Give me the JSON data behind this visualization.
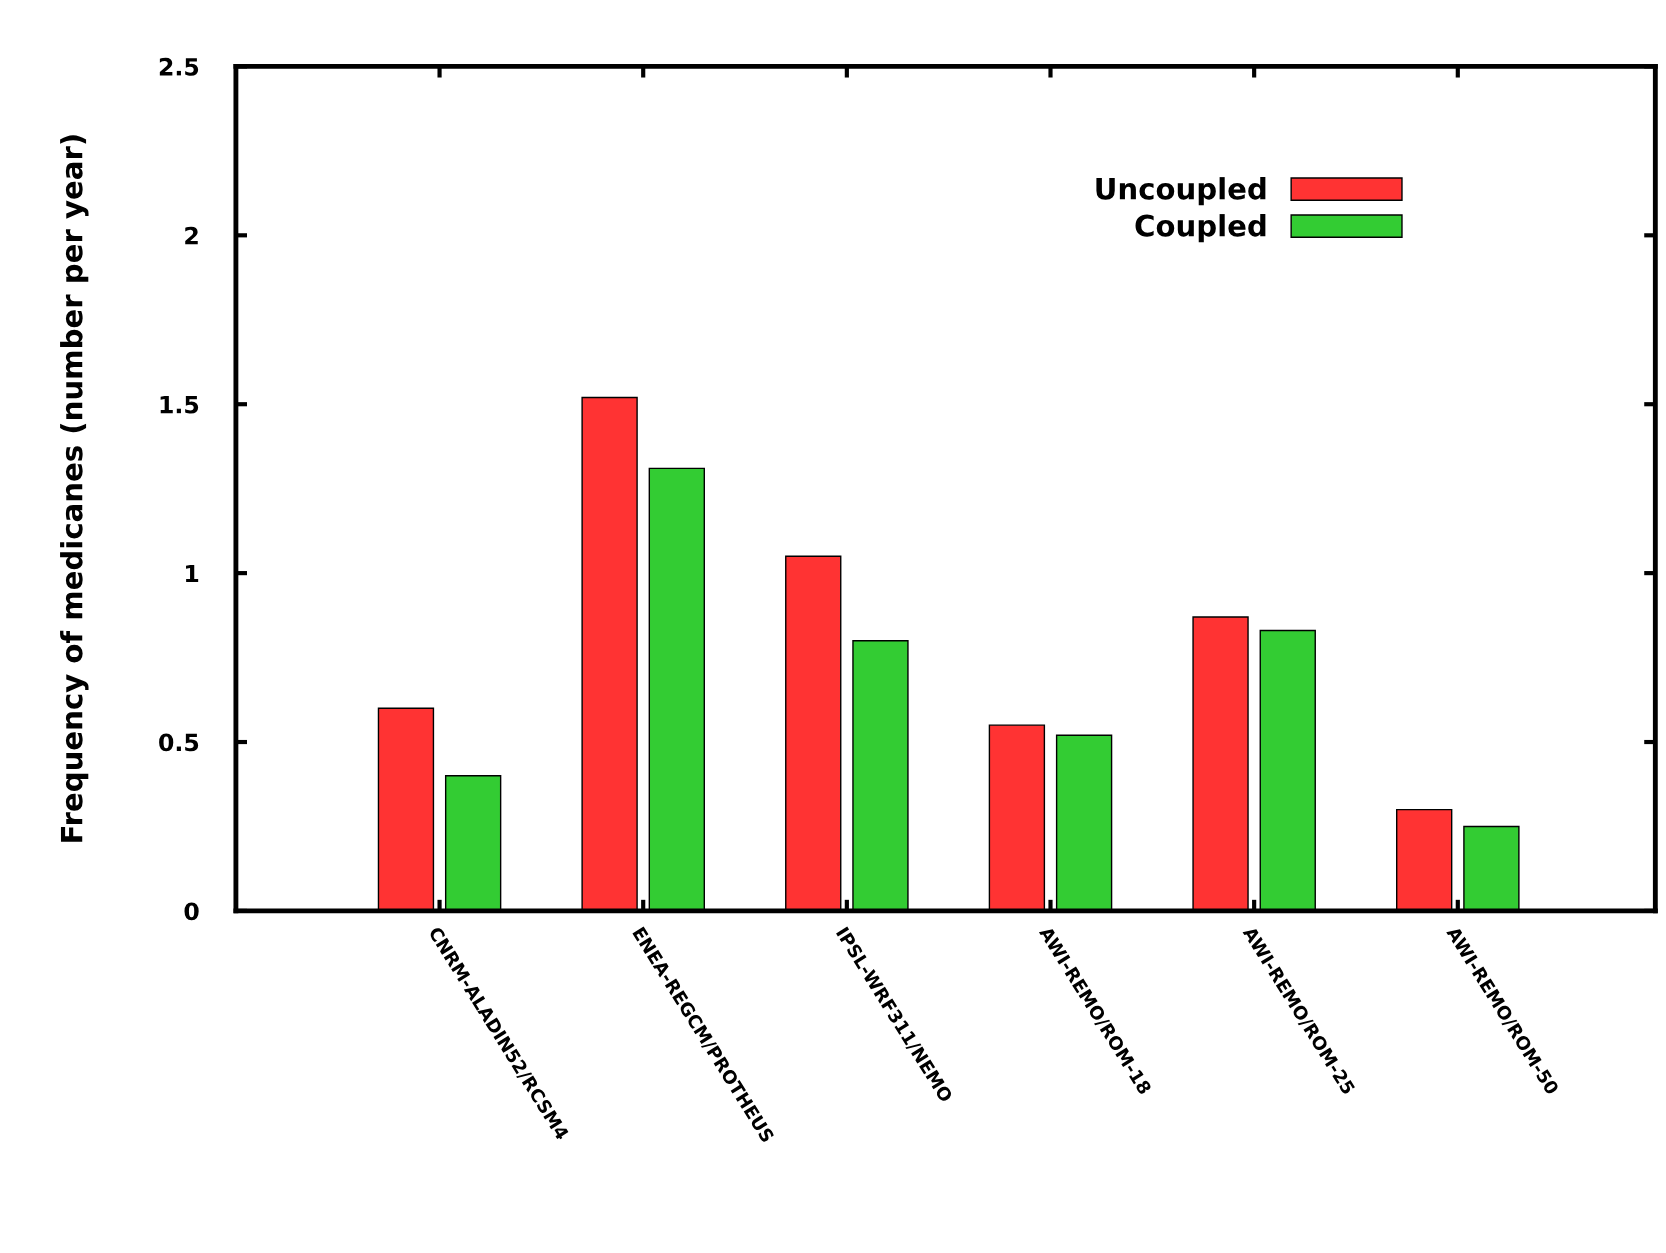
{
  "chart_data": {
    "type": "bar",
    "ylabel": "Frequency of medicanes (number per year)",
    "categories": [
      "CNRM-ALADIN52/RCSM4",
      "ENEA-REGCM/PROTHEUS",
      "IPSL-WRF311/NEMO",
      "AWI-REMO/ROM-18",
      "AWI-REMO/ROM-25",
      "AWI-REMO/ROM-50"
    ],
    "series": [
      {
        "name": "Uncoupled",
        "color": "#ff3333",
        "values": [
          0.6,
          1.52,
          1.05,
          0.55,
          0.87,
          0.3
        ]
      },
      {
        "name": "Coupled",
        "color": "#33cc33",
        "values": [
          0.4,
          1.31,
          0.8,
          0.52,
          0.83,
          0.25
        ]
      }
    ],
    "ylim": [
      0,
      2.5
    ],
    "yticks": [
      0,
      0.5,
      1,
      1.5,
      2,
      2.5
    ],
    "grid": false,
    "legend": "top right"
  }
}
